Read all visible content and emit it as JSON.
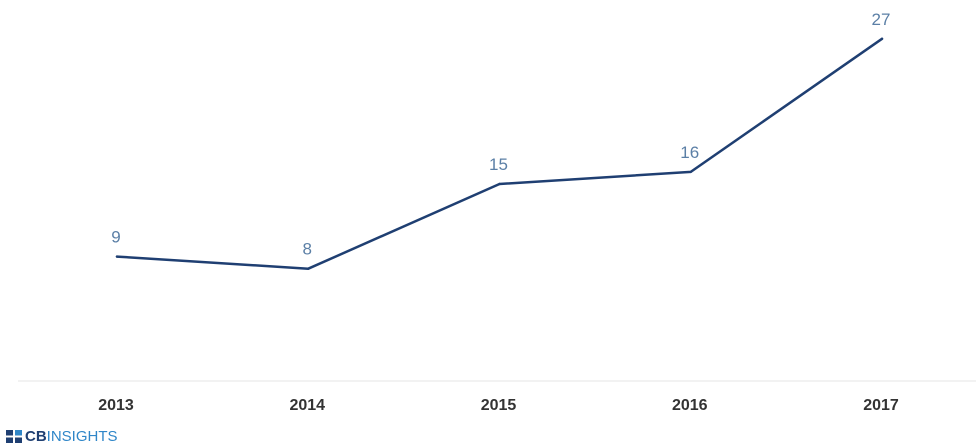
{
  "chart_data": {
    "type": "line",
    "categories": [
      "2013",
      "2014",
      "2015",
      "2016",
      "2017"
    ],
    "series": [
      {
        "values": [
          9,
          8,
          15,
          16,
          27
        ]
      }
    ],
    "data_labels": [
      "9",
      "8",
      "15",
      "16",
      "27"
    ],
    "title": "",
    "xlabel": "",
    "ylabel": "",
    "ylim": [
      0,
      30
    ],
    "grid": false,
    "legend": "none",
    "colors": {
      "line": "#1f3f72",
      "data_label": "#5b7fa6",
      "tick_label": "#333333",
      "axis": "#e6e6e6"
    }
  },
  "brand": {
    "bold_text": "CB",
    "light_text": "INSIGHTS",
    "icon": "cb-insights-logo-icon",
    "colors": {
      "dark": "#1f3f72",
      "light": "#2f86c8"
    }
  }
}
